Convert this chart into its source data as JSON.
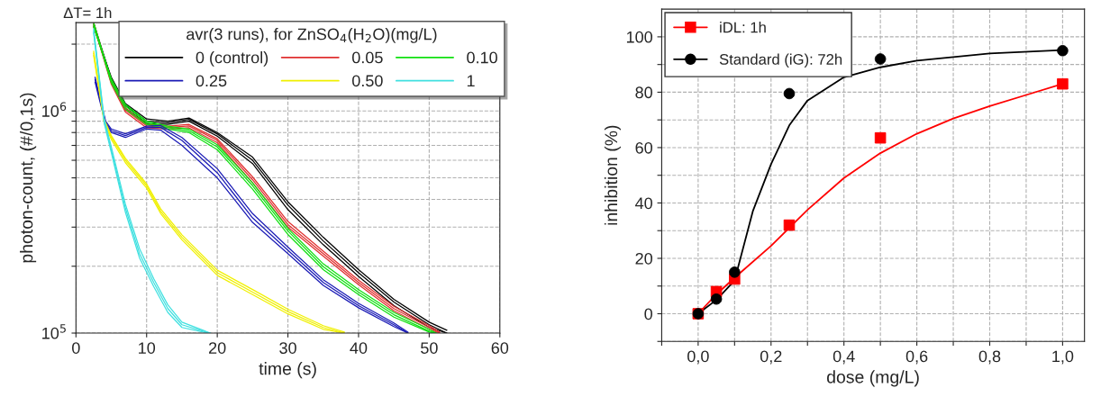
{
  "chart_data": [
    {
      "type": "line",
      "xlabel": "time (s)",
      "ylabel": "photon-count, (#/0,1s)",
      "legend_title": "avr(3 runs), for ZnSO$_{4}$(H$_{2}$O)(mg/L)",
      "annotations": [
        "ΔT= 1h"
      ],
      "log": "y",
      "xlim": [
        0,
        60
      ],
      "xticks": [
        0,
        10,
        20,
        30,
        40,
        50,
        60
      ],
      "ylim": [
        100000,
        2500000
      ],
      "yticks": [
        {
          "value": 100000,
          "label": "10$^{5}$"
        },
        {
          "value": 200000,
          "label": null
        },
        {
          "value": 300000,
          "label": null
        },
        {
          "value": 400000,
          "label": null
        },
        {
          "value": 500000,
          "label": null
        },
        {
          "value": 600000,
          "label": null
        },
        {
          "value": 700000,
          "label": null
        },
        {
          "value": 800000,
          "label": null
        },
        {
          "value": 900000,
          "label": null
        },
        {
          "value": 1000000,
          "label": "10$^{6}$"
        },
        {
          "value": 2000000,
          "label": null
        }
      ],
      "grid": true,
      "legend": "top right",
      "line_style": "solid",
      "marker": "none",
      "series": [
        {
          "name": "0 (control)",
          "color": "#000000",
          "x": [
            2.5,
            5,
            7,
            10,
            13,
            16,
            20,
            25,
            30,
            35,
            40,
            45,
            50,
            52.5
          ],
          "values": [
            2500000,
            1390000,
            1060000,
            900000,
            886000,
            917000,
            788000,
            600000,
            377000,
            260000,
            187000,
            138000,
            109000,
            100000
          ]
        },
        {
          "color": "#000000",
          "x": [
            2.5,
            5,
            7,
            10,
            13,
            16,
            20,
            25,
            30,
            35,
            40,
            45,
            50,
            52.5
          ],
          "values": [
            2450000,
            1350000,
            1030000,
            880000,
            870000,
            900000,
            770000,
            580000,
            360000,
            250000,
            180000,
            133000,
            106000,
            100000
          ]
        },
        {
          "color": "#000000",
          "x": [
            2.5,
            5,
            7,
            10,
            13,
            16,
            20,
            25,
            30,
            35,
            40,
            45,
            50,
            52.5
          ],
          "values": [
            2400000,
            1420000,
            1080000,
            920000,
            900000,
            930000,
            800000,
            620000,
            390000,
            270000,
            193000,
            142000,
            112000,
            103000
          ]
        },
        {
          "name": "0.05",
          "color": "#e03030",
          "x": [
            2.5,
            5,
            7,
            10,
            13,
            16,
            20,
            25,
            30,
            35,
            40,
            45,
            50,
            51.5
          ],
          "values": [
            2500000,
            1350000,
            1010000,
            857000,
            843000,
            857000,
            737000,
            490000,
            308000,
            228000,
            169000,
            129000,
            106000,
            100000
          ]
        },
        {
          "color": "#e03030",
          "x": [
            2.5,
            5,
            7,
            10,
            13,
            16,
            20,
            25,
            30,
            35,
            40,
            45,
            50,
            51.5
          ],
          "values": [
            2450000,
            1320000,
            990000,
            840000,
            830000,
            840000,
            720000,
            475000,
            300000,
            222000,
            165000,
            126000,
            104000,
            100000
          ]
        },
        {
          "color": "#e03030",
          "x": [
            2.5,
            5,
            7,
            10,
            13,
            16,
            20,
            25,
            30,
            35,
            40,
            45,
            50,
            51.5
          ],
          "values": [
            2400000,
            1380000,
            1030000,
            870000,
            855000,
            870000,
            750000,
            505000,
            318000,
            234000,
            173000,
            132000,
            108000,
            101000
          ]
        },
        {
          "name": "0.10",
          "color": "#10e010",
          "x": [
            2.5,
            5,
            7,
            10,
            13,
            16,
            20,
            25,
            30,
            35,
            40,
            45,
            50,
            51
          ],
          "values": [
            2500000,
            1370000,
            1050000,
            886000,
            843000,
            815000,
            689000,
            461000,
            288000,
            199000,
            153000,
            121000,
            102000,
            100000
          ]
        },
        {
          "color": "#10e010",
          "x": [
            2.5,
            5,
            7,
            10,
            13,
            16,
            20,
            25,
            30,
            35,
            40,
            45,
            50,
            51
          ],
          "values": [
            2450000,
            1340000,
            1020000,
            870000,
            830000,
            800000,
            670000,
            445000,
            278000,
            193000,
            149000,
            118000,
            101000,
            100000
          ]
        },
        {
          "color": "#10e010",
          "x": [
            2.5,
            5,
            7,
            10,
            13,
            16,
            20,
            25,
            30,
            35,
            40,
            45,
            50,
            51
          ],
          "values": [
            2400000,
            1400000,
            1070000,
            900000,
            855000,
            830000,
            705000,
            475000,
            296000,
            205000,
            157000,
            124000,
            104000,
            100000
          ]
        },
        {
          "name": "0.25",
          "color": "#1a1ab5",
          "x": [
            2.7,
            4.2,
            5,
            7,
            10,
            12,
            15,
            20,
            25,
            30,
            35,
            40,
            45,
            47
          ],
          "values": [
            1390000,
            886000,
            815000,
            775000,
            843000,
            843000,
            737000,
            527000,
            330000,
            236000,
            169000,
            133000,
            109000,
            100000
          ]
        },
        {
          "color": "#1a1ab5",
          "x": [
            2.7,
            4.2,
            5,
            7,
            10,
            12,
            15,
            20,
            25,
            30,
            35,
            40,
            45,
            47
          ],
          "values": [
            1350000,
            870000,
            800000,
            760000,
            830000,
            820000,
            700000,
            500000,
            315000,
            228000,
            164000,
            130000,
            107000,
            100000
          ]
        },
        {
          "color": "#1a1ab5",
          "x": [
            2.7,
            4.2,
            5,
            7,
            10,
            12,
            15,
            20,
            25,
            30,
            35,
            40,
            45,
            47
          ],
          "values": [
            1420000,
            900000,
            830000,
            790000,
            855000,
            860000,
            760000,
            550000,
            345000,
            244000,
            174000,
            136000,
            111000,
            101000
          ]
        },
        {
          "name": "0.50",
          "color": "#f0f000",
          "x": [
            2.5,
            4,
            5,
            7,
            10,
            12,
            15,
            20,
            25,
            30,
            35,
            38
          ],
          "values": [
            1820000,
            900000,
            762000,
            600000,
            461000,
            353000,
            270000,
            187000,
            153000,
            125000,
            106000,
            100000
          ]
        },
        {
          "color": "#f0f000",
          "x": [
            2.5,
            4,
            5,
            7,
            10,
            12,
            15,
            20,
            25,
            30,
            35,
            38
          ],
          "values": [
            1780000,
            880000,
            745000,
            585000,
            450000,
            345000,
            263000,
            182000,
            149000,
            122000,
            104000,
            100000
          ]
        },
        {
          "color": "#f0f000",
          "x": [
            2.5,
            4,
            5,
            7,
            10,
            12,
            15,
            20,
            25,
            30,
            35,
            38
          ],
          "values": [
            1860000,
            915000,
            775000,
            612000,
            470000,
            362000,
            277000,
            192000,
            157000,
            128000,
            108000,
            101000
          ]
        },
        {
          "name": "1",
          "color": "#40e0e0",
          "x": [
            2.5,
            4,
            5,
            7,
            9,
            11,
            13,
            15,
            18,
            19
          ],
          "values": [
            2300000,
            900000,
            667000,
            365000,
            228000,
            169000,
            129000,
            109000,
            102000,
            100000
          ]
        },
        {
          "color": "#40e0e0",
          "x": [
            2.5,
            4,
            5,
            7,
            9,
            11,
            13,
            15,
            18,
            19
          ],
          "values": [
            2250000,
            880000,
            650000,
            350000,
            218000,
            162000,
            124000,
            106000,
            101000,
            100000
          ]
        },
        {
          "color": "#40e0e0",
          "x": [
            2.5,
            4,
            5,
            7,
            9,
            11,
            13,
            15,
            18,
            19
          ],
          "values": [
            2350000,
            920000,
            690000,
            380000,
            240000,
            176000,
            134000,
            112000,
            103000,
            100000
          ]
        }
      ]
    },
    {
      "type": "scatter",
      "xlabel": "dose (mg/L)",
      "ylabel": "inhibition (%)",
      "xlim": [
        -0.1,
        1.06
      ],
      "xticks": [
        {
          "value": -0.1,
          "label": null
        },
        {
          "value": 0,
          "label": "0,0"
        },
        {
          "value": 0.1,
          "label": null
        },
        {
          "value": 0.2,
          "label": "0,2"
        },
        {
          "value": 0.3,
          "label": null
        },
        {
          "value": 0.4,
          "label": "0,4"
        },
        {
          "value": 0.5,
          "label": null
        },
        {
          "value": 0.6,
          "label": "0,6"
        },
        {
          "value": 0.7,
          "label": null
        },
        {
          "value": 0.8,
          "label": "0,8"
        },
        {
          "value": 0.9,
          "label": null
        },
        {
          "value": 1.0,
          "label": "1,0"
        }
      ],
      "ylim": [
        -10,
        110
      ],
      "yticks": [
        {
          "value": -10,
          "label": null
        },
        0,
        {
          "value": 10,
          "label": null
        },
        20,
        {
          "value": 30,
          "label": null
        },
        40,
        {
          "value": 50,
          "label": null
        },
        60,
        {
          "value": 70,
          "label": null
        },
        80,
        {
          "value": 90,
          "label": null
        },
        100
      ],
      "grid": true,
      "legend": "top left",
      "series": [
        {
          "name": "iDL: 1h",
          "color": "#ff0000",
          "marker": "square",
          "x": [
            0,
            0.05,
            0.1,
            0.25,
            0.5,
            1.0
          ],
          "values": [
            0,
            8,
            12.5,
            32,
            63.5,
            83
          ]
        },
        {
          "name": "Standard (iG): 72h",
          "color": "#000000",
          "marker": "circle",
          "x": [
            0,
            0.05,
            0.1,
            0.25,
            0.5,
            1.0
          ],
          "values": [
            0,
            5.3,
            15,
            79.5,
            92,
            95
          ]
        },
        {
          "type": "line",
          "color": "#ff0000",
          "x": [
            0,
            0.05,
            0.1,
            0.2,
            0.25,
            0.3,
            0.4,
            0.5,
            0.6,
            0.7,
            0.8,
            0.9,
            1.0
          ],
          "values": [
            0,
            7,
            13,
            24.5,
            31,
            37.5,
            49,
            58,
            65,
            70.5,
            75,
            79,
            83
          ]
        },
        {
          "type": "line",
          "color": "#000000",
          "x": [
            0,
            0.05,
            0.1,
            0.15,
            0.2,
            0.25,
            0.3,
            0.4,
            0.5,
            0.6,
            0.8,
            1.0
          ],
          "values": [
            0,
            5,
            12,
            37,
            54,
            68,
            77,
            85.4,
            89,
            91.4,
            94,
            95.2
          ]
        }
      ]
    }
  ]
}
